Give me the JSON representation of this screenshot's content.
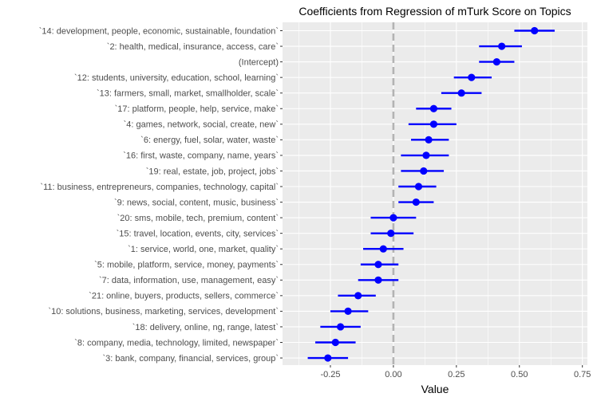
{
  "chart_data": {
    "type": "scatter",
    "title": "Coefficients from Regression of mTurk Score on Topics",
    "xlabel": "Value",
    "ylabel": "",
    "xlim": [
      -0.44,
      0.77
    ],
    "xticks": [
      -0.25,
      0.0,
      0.25,
      0.5,
      0.75
    ],
    "xtick_labels": [
      "-0.25",
      "0.00",
      "0.25",
      "0.50",
      "0.75"
    ],
    "reference_line": 0.0,
    "grid": true,
    "point_color": "#0000FF",
    "reference_line_color": "#B3B3B3",
    "panel_background": "#EBEBEB",
    "terms": [
      {
        "label": "`14: development, people, economic, sustainable, foundation`",
        "estimate": 0.56,
        "low": 0.48,
        "high": 0.64
      },
      {
        "label": "`2: health, medical, insurance, access, care`",
        "estimate": 0.43,
        "low": 0.34,
        "high": 0.51
      },
      {
        "label": "(Intercept)",
        "estimate": 0.41,
        "low": 0.34,
        "high": 0.48
      },
      {
        "label": "`12: students, university, education, school, learning`",
        "estimate": 0.31,
        "low": 0.24,
        "high": 0.39
      },
      {
        "label": "`13: farmers, small, market, smallholder, scale`",
        "estimate": 0.27,
        "low": 0.19,
        "high": 0.35
      },
      {
        "label": "`17: platform, people, help, service, make`",
        "estimate": 0.16,
        "low": 0.09,
        "high": 0.23
      },
      {
        "label": "`4: games, network, social, create, new`",
        "estimate": 0.16,
        "low": 0.06,
        "high": 0.25
      },
      {
        "label": "`6: energy, fuel, solar, water, waste`",
        "estimate": 0.14,
        "low": 0.07,
        "high": 0.22
      },
      {
        "label": "`16: first, waste, company, name, years`",
        "estimate": 0.13,
        "low": 0.03,
        "high": 0.22
      },
      {
        "label": "`19: real, estate, job, project, jobs`",
        "estimate": 0.12,
        "low": 0.03,
        "high": 0.2
      },
      {
        "label": "`11: business, entrepreneurs, companies, technology, capital`",
        "estimate": 0.1,
        "low": 0.02,
        "high": 0.17
      },
      {
        "label": "`9: news, social, content, music, business`",
        "estimate": 0.09,
        "low": 0.02,
        "high": 0.16
      },
      {
        "label": "`20: sms, mobile, tech, premium, content`",
        "estimate": 0.0,
        "low": -0.09,
        "high": 0.09
      },
      {
        "label": "`15: travel, location, events, city, services`",
        "estimate": -0.01,
        "low": -0.09,
        "high": 0.08
      },
      {
        "label": "`1: service, world, one, market, quality`",
        "estimate": -0.04,
        "low": -0.12,
        "high": 0.04
      },
      {
        "label": "`5: mobile, platform, service, money, payments`",
        "estimate": -0.06,
        "low": -0.13,
        "high": 0.02
      },
      {
        "label": "`7: data, information, use, management, easy`",
        "estimate": -0.06,
        "low": -0.14,
        "high": 0.02
      },
      {
        "label": "`21: online, buyers, products, sellers, commerce`",
        "estimate": -0.14,
        "low": -0.22,
        "high": -0.07
      },
      {
        "label": "`10: solutions, business, marketing, services, development`",
        "estimate": -0.18,
        "low": -0.25,
        "high": -0.1
      },
      {
        "label": "`18: delivery, online, ng, range, latest`",
        "estimate": -0.21,
        "low": -0.29,
        "high": -0.13
      },
      {
        "label": "`8: company, media, technology, limited, newspaper`",
        "estimate": -0.23,
        "low": -0.31,
        "high": -0.15
      },
      {
        "label": "`3: bank, company, financial, services, group`",
        "estimate": -0.26,
        "low": -0.34,
        "high": -0.18
      }
    ]
  }
}
